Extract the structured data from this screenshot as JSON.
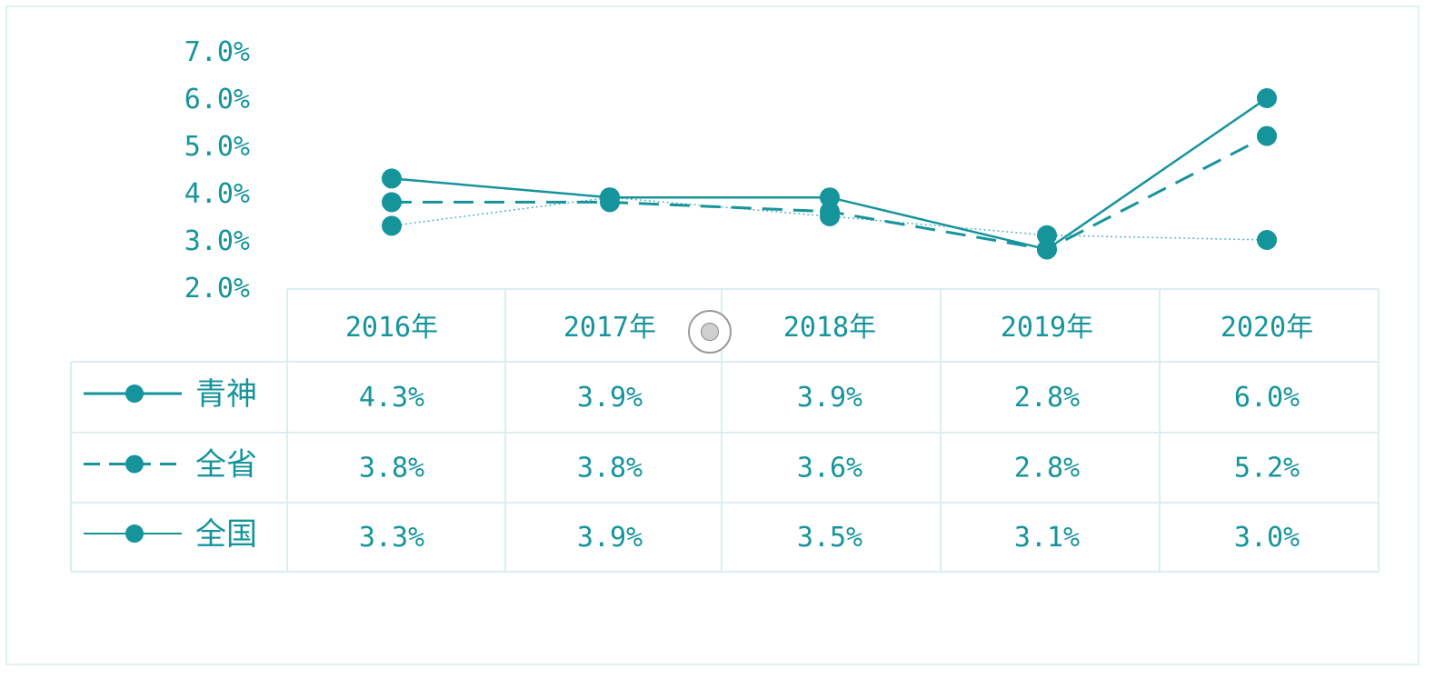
{
  "chart_data": {
    "type": "line",
    "x": [
      "2016年",
      "2017年",
      "2018年",
      "2019年",
      "2020年"
    ],
    "ylim": [
      2.0,
      7.0
    ],
    "yticks": [
      "2.0%",
      "3.0%",
      "4.0%",
      "5.0%",
      "6.0%",
      "7.0%"
    ],
    "series": [
      {
        "name": "青神",
        "values": [
          4.3,
          3.9,
          3.9,
          2.8,
          6.0
        ],
        "labels": [
          "4.3%",
          "3.9%",
          "3.9%",
          "2.8%",
          "6.0%"
        ],
        "style": "solid",
        "color": "#16949c"
      },
      {
        "name": "全省",
        "values": [
          3.8,
          3.8,
          3.6,
          2.8,
          5.2
        ],
        "labels": [
          "3.8%",
          "3.8%",
          "3.6%",
          "2.8%",
          "5.2%"
        ],
        "style": "dashed",
        "color": "#16949c"
      },
      {
        "name": "全国",
        "values": [
          3.3,
          3.9,
          3.5,
          3.1,
          3.0
        ],
        "labels": [
          "3.3%",
          "3.9%",
          "3.5%",
          "3.1%",
          "3.0%"
        ],
        "style": "dotted",
        "color": "#16949c"
      }
    ],
    "grid": false,
    "legend": "data-table-left"
  }
}
